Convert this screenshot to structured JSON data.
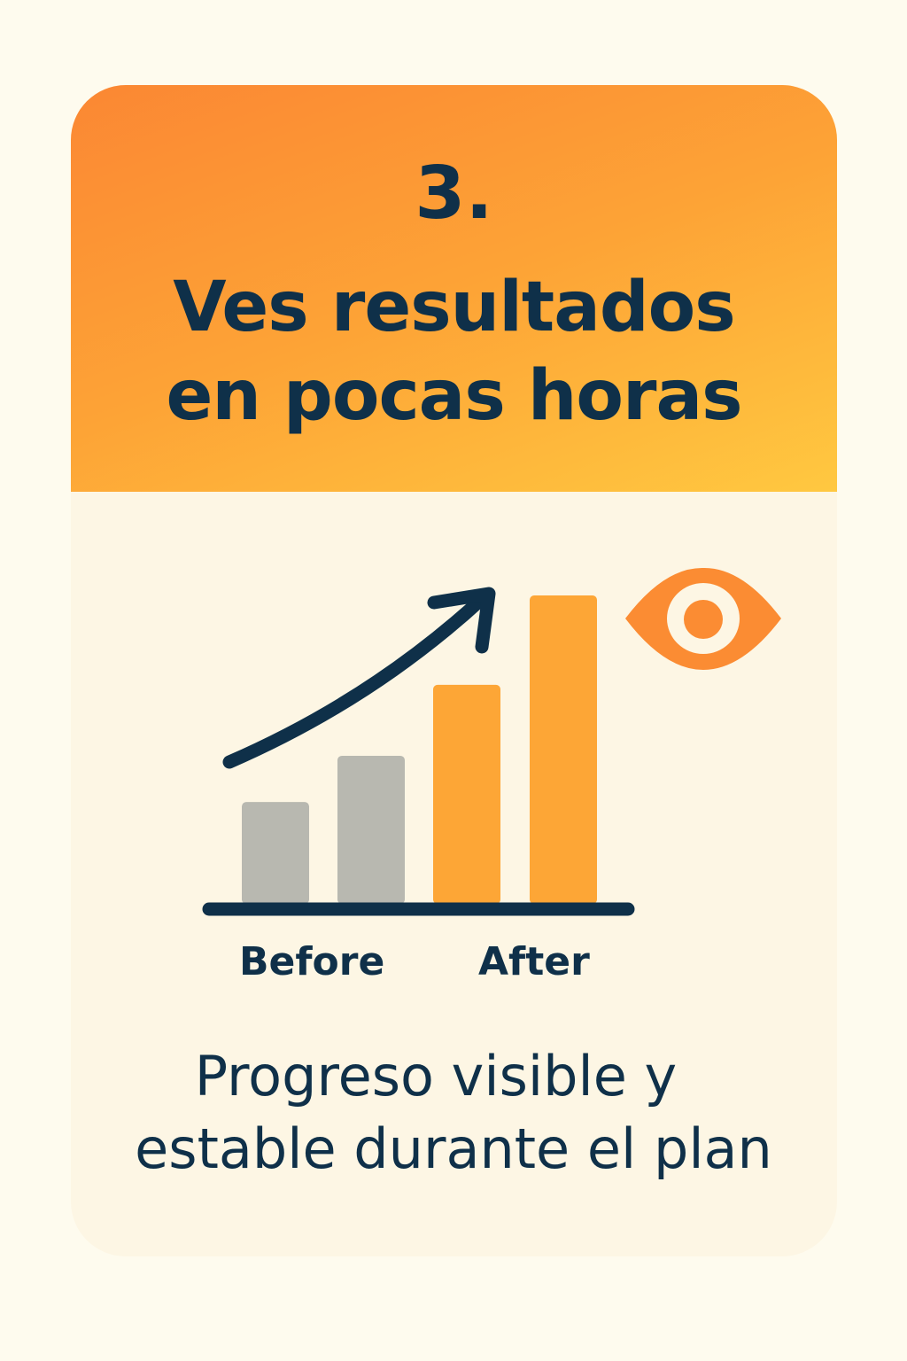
{
  "header": {
    "number": "3.",
    "title_line1": "Ves resultados",
    "title_line2": "en pocas horas"
  },
  "chart_data": {
    "type": "bar",
    "categories": [
      "",
      "",
      "",
      ""
    ],
    "values": [
      33,
      48,
      71,
      100
    ],
    "group_labels": [
      "Before",
      "After"
    ],
    "colors": [
      "#B8B8B0",
      "#B8B8B0",
      "#FDA636",
      "#FDA636"
    ],
    "trend_arrow": "up",
    "ylim": [
      0,
      100
    ]
  },
  "icons": {
    "eye": "eye-icon",
    "arrow": "trend-up-arrow-icon"
  },
  "footer": {
    "line1": "Progreso visible y",
    "line2": "estable durante el plan"
  },
  "colors": {
    "text": "#0F3049",
    "accent": "#FB8C33",
    "accent_light": "#FFC640",
    "eye": "#FB8C33",
    "card_bg": "#FDF6E4",
    "page_bg": "#FEFBEE"
  }
}
